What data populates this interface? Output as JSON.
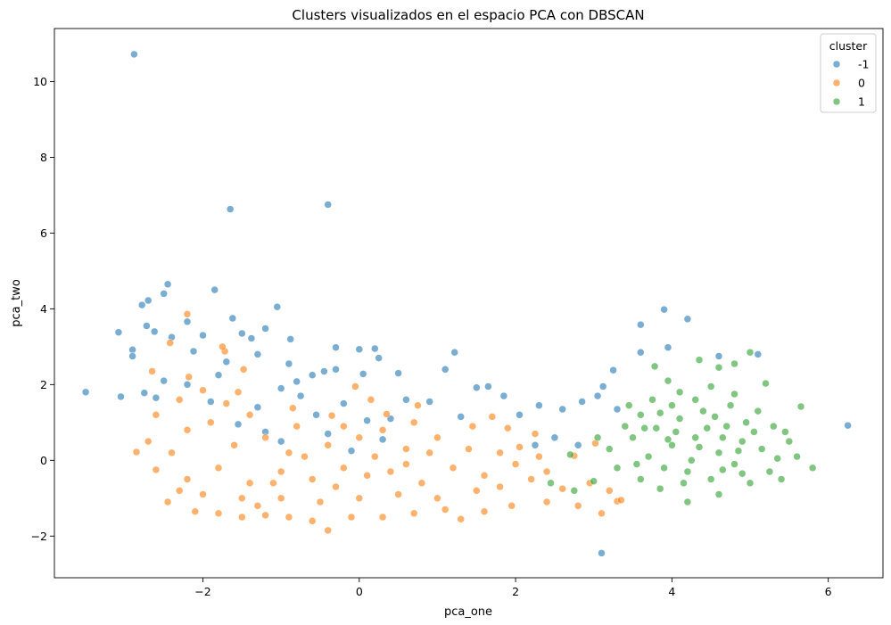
{
  "chart_data": {
    "type": "scatter",
    "title": "Clusters visualizados en el espacio PCA con DBSCAN",
    "xlabel": "pca_one",
    "ylabel": "pca_two",
    "xlim": [
      -3.9,
      6.7
    ],
    "ylim": [
      -3.1,
      11.4
    ],
    "xticks": [
      -2,
      0,
      2,
      4,
      6
    ],
    "yticks": [
      -2,
      0,
      2,
      4,
      6,
      8,
      10
    ],
    "xtick_labels": [
      "−2",
      "0",
      "2",
      "4",
      "6"
    ],
    "ytick_labels": [
      "−2",
      "0",
      "2",
      "4",
      "6",
      "8",
      "10"
    ],
    "grid": false,
    "legend": {
      "title": "cluster",
      "placement": "top-right",
      "entries": [
        {
          "label": "-1",
          "color": "#1f77b4"
        },
        {
          "label": "0",
          "color": "#ff7f0e"
        },
        {
          "label": "1",
          "color": "#2ca02c"
        }
      ]
    },
    "series": [
      {
        "cluster": "-1",
        "color": "#1f77b4",
        "points": [
          [
            -2.88,
            10.72
          ],
          [
            -1.65,
            6.63
          ],
          [
            -0.4,
            6.75
          ],
          [
            -2.45,
            4.65
          ],
          [
            -1.85,
            4.5
          ],
          [
            -2.7,
            4.22
          ],
          [
            -2.5,
            4.4
          ],
          [
            -2.78,
            4.1
          ],
          [
            -3.08,
            3.38
          ],
          [
            -1.05,
            4.05
          ],
          [
            -2.2,
            3.66
          ],
          [
            -2.72,
            3.55
          ],
          [
            -2.62,
            3.4
          ],
          [
            -1.5,
            3.35
          ],
          [
            -1.38,
            3.22
          ],
          [
            -1.2,
            3.48
          ],
          [
            -0.88,
            3.2
          ],
          [
            -2.0,
            3.3
          ],
          [
            -1.62,
            3.75
          ],
          [
            -0.3,
            2.98
          ],
          [
            0.2,
            2.95
          ],
          [
            0.0,
            2.93
          ],
          [
            -2.9,
            2.92
          ],
          [
            -2.9,
            2.75
          ],
          [
            -2.4,
            3.25
          ],
          [
            -2.12,
            2.88
          ],
          [
            -1.7,
            2.6
          ],
          [
            -1.3,
            2.8
          ],
          [
            -0.9,
            2.55
          ],
          [
            -0.45,
            2.35
          ],
          [
            -0.3,
            2.4
          ],
          [
            -0.6,
            2.25
          ],
          [
            -0.8,
            2.08
          ],
          [
            -1.0,
            1.9
          ],
          [
            0.05,
            2.28
          ],
          [
            0.25,
            2.7
          ],
          [
            0.5,
            2.3
          ],
          [
            0.6,
            1.6
          ],
          [
            0.9,
            1.55
          ],
          [
            1.1,
            2.4
          ],
          [
            1.22,
            2.85
          ],
          [
            1.5,
            1.92
          ],
          [
            1.65,
            1.95
          ],
          [
            1.85,
            1.7
          ],
          [
            2.05,
            1.2
          ],
          [
            2.3,
            1.45
          ],
          [
            2.6,
            1.35
          ],
          [
            2.85,
            1.55
          ],
          [
            3.12,
            1.95
          ],
          [
            3.05,
            1.7
          ],
          [
            3.25,
            2.38
          ],
          [
            3.6,
            2.85
          ],
          [
            3.6,
            3.58
          ],
          [
            3.9,
            3.98
          ],
          [
            4.2,
            3.73
          ],
          [
            3.95,
            2.98
          ],
          [
            4.6,
            2.75
          ],
          [
            5.1,
            2.8
          ],
          [
            6.25,
            0.92
          ],
          [
            3.1,
            -2.45
          ],
          [
            -3.05,
            1.68
          ],
          [
            -2.6,
            1.65
          ],
          [
            -2.2,
            2.0
          ],
          [
            -1.9,
            1.55
          ],
          [
            -1.3,
            1.4
          ],
          [
            -0.75,
            1.7
          ],
          [
            -0.2,
            1.5
          ],
          [
            0.1,
            1.05
          ],
          [
            0.4,
            1.1
          ],
          [
            -1.55,
            0.95
          ],
          [
            -1.2,
            0.75
          ],
          [
            -0.4,
            0.7
          ],
          [
            0.3,
            0.55
          ],
          [
            -1.8,
            2.25
          ],
          [
            -2.5,
            2.1
          ],
          [
            2.25,
            0.4
          ],
          [
            2.5,
            0.6
          ],
          [
            2.8,
            0.4
          ],
          [
            3.3,
            1.35
          ],
          [
            1.3,
            1.15
          ],
          [
            -3.5,
            1.8
          ],
          [
            -2.75,
            1.78
          ],
          [
            -0.55,
            1.2
          ],
          [
            -1.0,
            0.5
          ],
          [
            -0.1,
            0.25
          ]
        ]
      },
      {
        "cluster": "0",
        "color": "#ff7f0e",
        "points": [
          [
            -2.2,
            3.86
          ],
          [
            -2.42,
            3.1
          ],
          [
            -1.72,
            2.88
          ],
          [
            -1.48,
            2.4
          ],
          [
            -1.75,
            3.0
          ],
          [
            -2.18,
            2.2
          ],
          [
            -2.0,
            1.85
          ],
          [
            -1.55,
            1.8
          ],
          [
            -2.65,
            2.35
          ],
          [
            -0.35,
            1.18
          ],
          [
            -0.85,
            1.38
          ],
          [
            0.35,
            1.22
          ],
          [
            0.75,
            1.45
          ],
          [
            1.7,
            1.15
          ],
          [
            -2.85,
            0.22
          ],
          [
            -2.7,
            0.5
          ],
          [
            -2.6,
            -0.25
          ],
          [
            -2.45,
            -1.1
          ],
          [
            -2.3,
            -0.8
          ],
          [
            -2.1,
            -1.35
          ],
          [
            -1.8,
            -1.4
          ],
          [
            -1.5,
            -1.5
          ],
          [
            -1.2,
            -1.45
          ],
          [
            -0.9,
            -1.5
          ],
          [
            -0.6,
            -1.6
          ],
          [
            -0.4,
            -1.85
          ],
          [
            -0.1,
            -1.5
          ],
          [
            0.3,
            -1.5
          ],
          [
            0.7,
            -1.4
          ],
          [
            1.1,
            -1.3
          ],
          [
            1.3,
            -1.55
          ],
          [
            1.6,
            -1.35
          ],
          [
            1.95,
            -1.2
          ],
          [
            2.4,
            -1.1
          ],
          [
            2.8,
            -1.2
          ],
          [
            3.3,
            -1.08
          ],
          [
            3.2,
            -0.8
          ],
          [
            2.6,
            -0.75
          ],
          [
            2.2,
            -0.5
          ],
          [
            1.8,
            -0.7
          ],
          [
            2.05,
            0.35
          ],
          [
            2.25,
            0.7
          ],
          [
            1.9,
            0.85
          ],
          [
            1.45,
            0.9
          ],
          [
            1.0,
            0.6
          ],
          [
            0.6,
            0.3
          ],
          [
            0.2,
            0.1
          ],
          [
            -0.2,
            -0.2
          ],
          [
            -0.6,
            -0.5
          ],
          [
            -1.0,
            -0.3
          ],
          [
            -1.4,
            -0.6
          ],
          [
            -1.8,
            -0.2
          ],
          [
            -2.2,
            -0.5
          ],
          [
            -1.6,
            0.4
          ],
          [
            -1.2,
            0.6
          ],
          [
            -0.8,
            0.9
          ],
          [
            -0.4,
            0.4
          ],
          [
            0.0,
            0.6
          ],
          [
            0.4,
            -0.3
          ],
          [
            0.8,
            -0.6
          ],
          [
            1.2,
            -0.2
          ],
          [
            1.6,
            -0.4
          ],
          [
            2.0,
            -0.1
          ],
          [
            2.4,
            -0.3
          ],
          [
            2.75,
            0.12
          ],
          [
            3.02,
            0.45
          ],
          [
            -1.0,
            -1.0
          ],
          [
            -0.5,
            -1.1
          ],
          [
            0.0,
            -1.0
          ],
          [
            0.5,
            -0.9
          ],
          [
            -1.5,
            -1.0
          ],
          [
            -2.0,
            -0.9
          ],
          [
            -2.4,
            0.2
          ],
          [
            -1.9,
            1.0
          ],
          [
            -1.4,
            1.2
          ],
          [
            -0.9,
            0.2
          ],
          [
            0.3,
            0.8
          ],
          [
            0.9,
            0.2
          ],
          [
            1.4,
            0.3
          ],
          [
            1.8,
            0.2
          ],
          [
            -0.3,
            -0.7
          ],
          [
            -0.7,
            0.1
          ],
          [
            -1.1,
            -0.6
          ],
          [
            0.1,
            -0.4
          ],
          [
            0.6,
            -0.1
          ],
          [
            1.0,
            -1.0
          ],
          [
            1.5,
            -0.8
          ],
          [
            -2.6,
            1.2
          ],
          [
            -2.3,
            1.6
          ],
          [
            -1.7,
            1.5
          ],
          [
            -2.2,
            0.8
          ],
          [
            -1.3,
            -1.2
          ],
          [
            -0.2,
            0.9
          ],
          [
            0.7,
            1.0
          ],
          [
            2.3,
            0.1
          ],
          [
            2.95,
            -0.6
          ],
          [
            3.1,
            -1.4
          ],
          [
            3.35,
            -1.05
          ],
          [
            -0.05,
            1.95
          ],
          [
            0.15,
            1.6
          ]
        ]
      },
      {
        "cluster": "1",
        "color": "#2ca02c",
        "points": [
          [
            3.78,
            2.48
          ],
          [
            4.35,
            2.65
          ],
          [
            4.6,
            2.45
          ],
          [
            4.8,
            2.55
          ],
          [
            5.0,
            2.85
          ],
          [
            5.2,
            2.03
          ],
          [
            5.65,
            1.42
          ],
          [
            5.8,
            -0.2
          ],
          [
            5.4,
            -0.5
          ],
          [
            5.0,
            -0.6
          ],
          [
            4.6,
            -0.9
          ],
          [
            4.2,
            -1.1
          ],
          [
            3.85,
            -0.75
          ],
          [
            3.6,
            -0.5
          ],
          [
            3.3,
            -0.2
          ],
          [
            3.0,
            -0.55
          ],
          [
            2.75,
            -0.8
          ],
          [
            2.45,
            -0.6
          ],
          [
            2.7,
            0.15
          ],
          [
            3.05,
            0.6
          ],
          [
            3.4,
            0.9
          ],
          [
            3.6,
            1.2
          ],
          [
            3.75,
            1.6
          ],
          [
            3.95,
            2.1
          ],
          [
            4.1,
            1.8
          ],
          [
            4.5,
            1.95
          ],
          [
            4.8,
            1.75
          ],
          [
            5.1,
            1.3
          ],
          [
            5.3,
            0.9
          ],
          [
            5.5,
            0.5
          ],
          [
            5.6,
            0.1
          ],
          [
            4.0,
            0.4
          ],
          [
            4.3,
            0.6
          ],
          [
            4.6,
            0.2
          ],
          [
            4.9,
            0.5
          ],
          [
            5.15,
            0.3
          ],
          [
            4.2,
            -0.3
          ],
          [
            4.5,
            -0.5
          ],
          [
            4.8,
            -0.1
          ],
          [
            3.7,
            0.1
          ],
          [
            3.9,
            -0.2
          ],
          [
            4.1,
            1.1
          ],
          [
            4.4,
            1.3
          ],
          [
            4.7,
            0.9
          ],
          [
            4.95,
            1.0
          ],
          [
            3.5,
            0.6
          ],
          [
            3.2,
            0.3
          ],
          [
            4.25,
            0.0
          ],
          [
            4.65,
            -0.25
          ],
          [
            5.25,
            -0.3
          ],
          [
            3.45,
            1.45
          ],
          [
            3.65,
            0.85
          ],
          [
            3.85,
            1.25
          ],
          [
            4.05,
            0.75
          ],
          [
            4.35,
            0.35
          ],
          [
            4.75,
            1.45
          ],
          [
            5.05,
            0.75
          ],
          [
            5.35,
            0.05
          ],
          [
            4.55,
            1.15
          ],
          [
            4.15,
            -0.6
          ],
          [
            3.55,
            -0.1
          ],
          [
            3.95,
            0.55
          ],
          [
            4.45,
            0.85
          ],
          [
            4.85,
            0.25
          ],
          [
            4.3,
            1.6
          ],
          [
            4.65,
            0.6
          ],
          [
            3.8,
            0.85
          ],
          [
            4.0,
            1.45
          ],
          [
            4.9,
            -0.35
          ],
          [
            5.45,
            0.75
          ]
        ]
      }
    ]
  }
}
